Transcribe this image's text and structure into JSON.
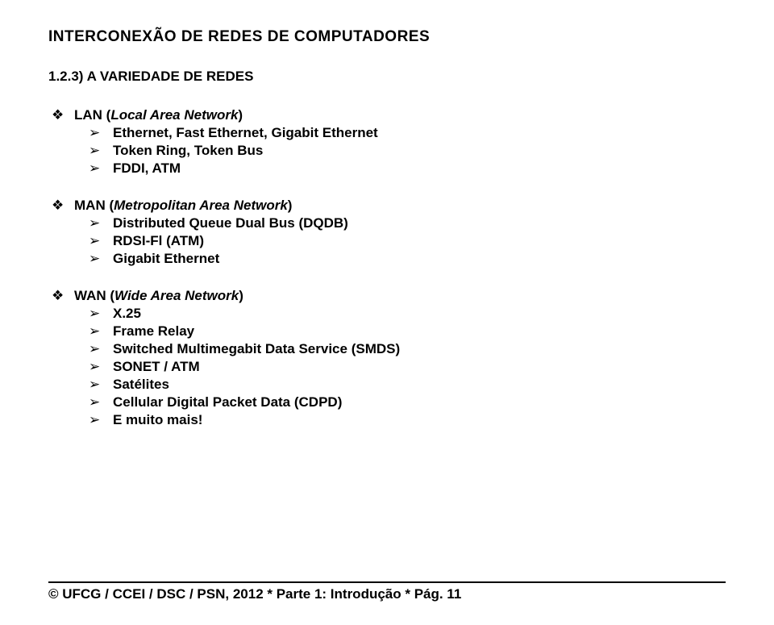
{
  "title": "INTERCONEXÃO DE REDES DE COMPUTADORES",
  "section_number": "1.2.3)  A VARIEDADE DE REDES",
  "groups": [
    {
      "heading_prefix": "LAN (",
      "heading_italic": "Local Area Network",
      "heading_suffix": ")",
      "items": [
        "Ethernet, Fast Ethernet, Gigabit Ethernet",
        "Token Ring, Token Bus",
        "FDDI, ATM"
      ]
    },
    {
      "heading_prefix": "MAN (",
      "heading_italic": "Metropolitan Area Network",
      "heading_suffix": ")",
      "items": [
        "Distributed Queue Dual Bus (DQDB)",
        "RDSI-Fl (ATM)",
        "Gigabit Ethernet"
      ]
    },
    {
      "heading_prefix": "WAN (",
      "heading_italic": "Wide Area Network",
      "heading_suffix": ")",
      "items": [
        "X.25",
        "Frame Relay",
        "Switched Multimegabit Data Service (SMDS)",
        "SONET / ATM",
        "Satélites",
        "Cellular Digital Packet Data (CDPD)",
        "E muito mais!"
      ]
    }
  ],
  "footer": "© UFCG / CCEI / DSC / PSN, 2012 * Parte 1: Introdução * Pág. 11",
  "bullets": {
    "l1": "❖",
    "l2": "➢"
  },
  "colors": {
    "background": "#ffffff",
    "text": "#000000"
  },
  "typography": {
    "font_family": "Verdana",
    "title_size_pt": 14,
    "body_size_pt": 13,
    "weight": "bold"
  }
}
